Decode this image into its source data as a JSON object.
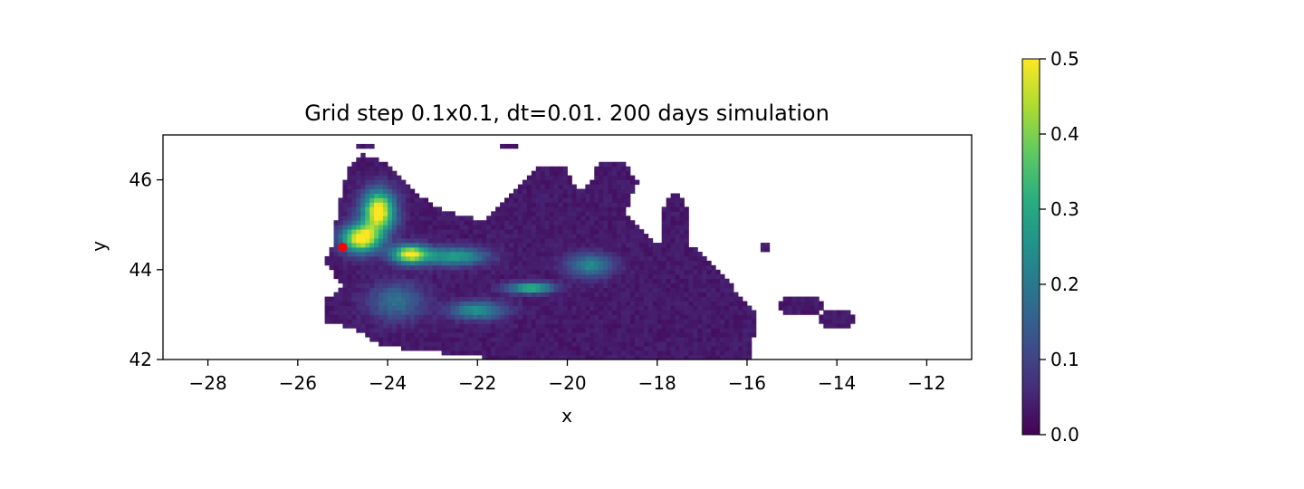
{
  "chart_data": {
    "type": "heatmap",
    "title": "Grid step 0.1x0.1, dt=0.01. 200 days simulation",
    "xlabel": "x",
    "ylabel": "y",
    "xlim": [
      -29,
      -11
    ],
    "ylim": [
      42,
      47
    ],
    "x_ticks": [
      -28,
      -26,
      -24,
      -22,
      -20,
      -18,
      -16,
      -14,
      -12
    ],
    "x_tick_labels": [
      "−28",
      "−26",
      "−24",
      "−22",
      "−20",
      "−18",
      "−16",
      "−14",
      "−12"
    ],
    "y_ticks": [
      42,
      44,
      46
    ],
    "y_tick_labels": [
      "42",
      "44",
      "46"
    ],
    "grid": false,
    "colormap": "viridis",
    "colorbar": {
      "vmin": 0.0,
      "vmax": 0.5,
      "ticks": [
        0.0,
        0.1,
        0.2,
        0.3,
        0.4,
        0.5
      ],
      "tick_labels": [
        "0.0",
        "0.1",
        "0.2",
        "0.3",
        "0.4",
        "0.5"
      ]
    },
    "source_marker": {
      "x": -25.0,
      "y": 44.5,
      "color": "#ff0000"
    },
    "plumes": [
      {
        "x": -24.2,
        "y": 45.3,
        "value": 0.5,
        "rx": 0.35,
        "ry": 0.45
      },
      {
        "x": -24.6,
        "y": 44.7,
        "value": 0.5,
        "rx": 0.4,
        "ry": 0.3
      },
      {
        "x": -23.5,
        "y": 44.35,
        "value": 0.45,
        "rx": 0.4,
        "ry": 0.2
      },
      {
        "x": -22.5,
        "y": 44.3,
        "value": 0.25,
        "rx": 0.7,
        "ry": 0.2
      },
      {
        "x": -20.8,
        "y": 43.6,
        "value": 0.3,
        "rx": 0.5,
        "ry": 0.12
      },
      {
        "x": -22.0,
        "y": 43.1,
        "value": 0.22,
        "rx": 0.6,
        "ry": 0.2
      },
      {
        "x": -19.5,
        "y": 44.1,
        "value": 0.2,
        "rx": 0.5,
        "ry": 0.25
      },
      {
        "x": -23.8,
        "y": 43.3,
        "value": 0.15,
        "rx": 0.6,
        "ry": 0.4
      }
    ]
  }
}
